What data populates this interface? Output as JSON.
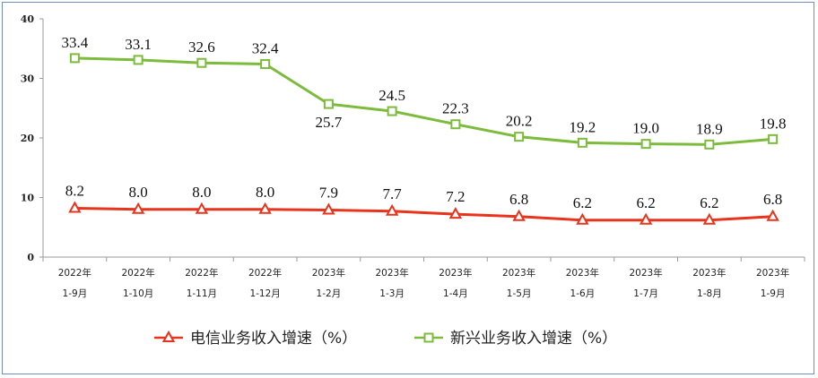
{
  "chart_data": {
    "type": "line",
    "title": "",
    "xlabel": "",
    "ylabel": "",
    "ylim": [
      0,
      40
    ],
    "yticks": [
      0,
      10,
      20,
      30,
      40
    ],
    "grid": false,
    "legend_position": "bottom",
    "categories": [
      [
        "2022年",
        "1-9月"
      ],
      [
        "2022年",
        "1-10月"
      ],
      [
        "2022年",
        "1-11月"
      ],
      [
        "2022年",
        "1-12月"
      ],
      [
        "2023年",
        "1-2月"
      ],
      [
        "2023年",
        "1-3月"
      ],
      [
        "2023年",
        "1-4月"
      ],
      [
        "2023年",
        "1-5月"
      ],
      [
        "2023年",
        "1-6月"
      ],
      [
        "2023年",
        "1-7月"
      ],
      [
        "2023年",
        "1-8月"
      ],
      [
        "2023年",
        "1-9月"
      ]
    ],
    "series": [
      {
        "name": "电信业务收入增速（%）",
        "color": "#e8341c",
        "marker": "triangle",
        "values": [
          8.2,
          8.0,
          8.0,
          8.0,
          7.9,
          7.7,
          7.2,
          6.8,
          6.2,
          6.2,
          6.2,
          6.8
        ],
        "labels": [
          "8.2",
          "8.0",
          "8.0",
          "8.0",
          "7.9",
          "7.7",
          "7.2",
          "6.8",
          "6.2",
          "6.2",
          "6.2",
          "6.8"
        ]
      },
      {
        "name": "新兴业务收入增速（%）",
        "color": "#7cbb3c",
        "marker": "square",
        "values": [
          33.4,
          33.1,
          32.6,
          32.4,
          25.7,
          24.5,
          22.3,
          20.2,
          19.2,
          19.0,
          18.9,
          19.8
        ],
        "labels": [
          "33.4",
          "33.1",
          "32.6",
          "32.4",
          "25.7",
          "24.5",
          "22.3",
          "20.2",
          "19.2",
          "19.0",
          "18.9",
          "19.8"
        ]
      }
    ]
  }
}
